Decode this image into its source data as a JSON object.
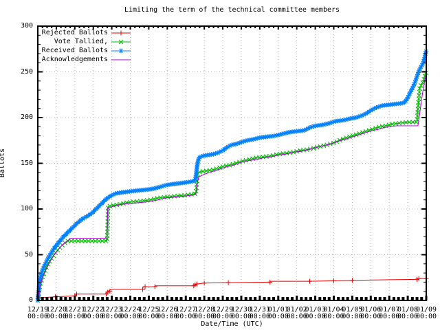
{
  "title": "Limiting the term of the technical committee members",
  "x_axis": {
    "label": "Date/Time (UTC)",
    "tick_time": "00:00",
    "tick_dates": [
      "12/19",
      "12/20",
      "12/21",
      "12/22",
      "12/23",
      "12/24",
      "12/25",
      "12/26",
      "12/27",
      "12/28",
      "12/29",
      "12/30",
      "12/31",
      "01/01",
      "01/02",
      "01/03",
      "01/04",
      "01/05",
      "01/06",
      "01/07",
      "01/08",
      "01/09"
    ]
  },
  "y_axis": {
    "label": "Ballots",
    "ticks": [
      0,
      50,
      100,
      150,
      200,
      250,
      300
    ]
  },
  "colors": {
    "rejected": "#e80000",
    "tallied": "#00b800",
    "received": "#0080ff",
    "acknowledgements": "#b000e0",
    "grid": "#b4b4b4",
    "border": "#000000"
  },
  "legend": [
    {
      "label": "Rejected Ballots",
      "series": "rejected",
      "marker": "plus"
    },
    {
      "label": "Vote Tallied,",
      "series": "tallied",
      "marker": "cross"
    },
    {
      "label": "Received Ballots",
      "series": "received",
      "marker": "asterisk"
    },
    {
      "label": "Acknowledgements",
      "series": "acknowledgements",
      "marker": "none"
    }
  ],
  "chart_data": {
    "type": "line",
    "title": "Limiting the term of the technical committee members",
    "xlabel": "Date/Time (UTC)",
    "ylabel": "Ballots",
    "ylim": [
      0,
      300
    ],
    "x_unit": "days since 12/19 00:00 UTC",
    "x_range_days": [
      0,
      21
    ],
    "grid": true,
    "legend_position": "top-left-inside",
    "series": [
      {
        "name": "Rejected Ballots",
        "series": "rejected",
        "marker": "plus",
        "marker_mode": "explicit",
        "points": [
          [
            0,
            0
          ],
          [
            0.1,
            3
          ],
          [
            0.95,
            4
          ],
          [
            2.0,
            5
          ],
          [
            2.1,
            7
          ],
          [
            3.65,
            7
          ],
          [
            3.72,
            9
          ],
          [
            3.8,
            10
          ],
          [
            3.95,
            12
          ],
          [
            5.65,
            12
          ],
          [
            5.7,
            15
          ],
          [
            6.3,
            15
          ],
          [
            6.35,
            16
          ],
          [
            8.4,
            16
          ],
          [
            8.45,
            17
          ],
          [
            8.6,
            18
          ],
          [
            9.0,
            19
          ],
          [
            10.3,
            19.5
          ],
          [
            12.5,
            20
          ],
          [
            12.6,
            21
          ],
          [
            14.7,
            21
          ],
          [
            16.0,
            21.5
          ],
          [
            17.0,
            22
          ],
          [
            18.5,
            22.5
          ],
          [
            20.4,
            23
          ],
          [
            20.55,
            24
          ],
          [
            21,
            24
          ]
        ],
        "marker_days": [
          0.1,
          0.95,
          2.0,
          2.1,
          3.7,
          3.78,
          3.9,
          5.67,
          5.8,
          6.33,
          8.43,
          8.5,
          8.6,
          9.0,
          10.3,
          12.55,
          14.7,
          16.0,
          17.0,
          20.5,
          20.6,
          21.0
        ]
      },
      {
        "name": "Vote Tallied,",
        "series": "tallied",
        "marker": "cross",
        "marker_mode": "path",
        "marker_spacing": 5,
        "points": [
          [
            0,
            0
          ],
          [
            0.05,
            8
          ],
          [
            0.12,
            16
          ],
          [
            0.25,
            25
          ],
          [
            0.4,
            33
          ],
          [
            0.55,
            40
          ],
          [
            0.75,
            46
          ],
          [
            0.95,
            52
          ],
          [
            1.15,
            57
          ],
          [
            1.35,
            61
          ],
          [
            1.55,
            64
          ],
          [
            1.65,
            65
          ],
          [
            3.74,
            65
          ],
          [
            3.78,
            85
          ],
          [
            3.8,
            103
          ],
          [
            4.1,
            104
          ],
          [
            4.4,
            105
          ],
          [
            4.8,
            107
          ],
          [
            5.2,
            108
          ],
          [
            5.7,
            109
          ],
          [
            6.1,
            110
          ],
          [
            6.5,
            112
          ],
          [
            6.9,
            113
          ],
          [
            7.4,
            114
          ],
          [
            7.9,
            115
          ],
          [
            8.3,
            116
          ],
          [
            8.55,
            117
          ],
          [
            8.6,
            128
          ],
          [
            8.65,
            140
          ],
          [
            8.9,
            141
          ],
          [
            9.2,
            142
          ],
          [
            9.5,
            143
          ],
          [
            9.8,
            145
          ],
          [
            10.1,
            147
          ],
          [
            10.4,
            148
          ],
          [
            10.7,
            150
          ],
          [
            11.0,
            152
          ],
          [
            11.4,
            154
          ],
          [
            11.8,
            156
          ],
          [
            12.2,
            157
          ],
          [
            12.6,
            158
          ],
          [
            13.0,
            160
          ],
          [
            13.4,
            161
          ],
          [
            13.8,
            162
          ],
          [
            14.2,
            164
          ],
          [
            14.6,
            165
          ],
          [
            15.0,
            167
          ],
          [
            15.4,
            169
          ],
          [
            15.8,
            171
          ],
          [
            16.1,
            173
          ],
          [
            16.4,
            176
          ],
          [
            16.7,
            178
          ],
          [
            17.0,
            180
          ],
          [
            17.3,
            182
          ],
          [
            17.6,
            184
          ],
          [
            17.9,
            186
          ],
          [
            18.2,
            188
          ],
          [
            18.5,
            190
          ],
          [
            18.8,
            191
          ],
          [
            19.2,
            193
          ],
          [
            19.6,
            194
          ],
          [
            20.0,
            195
          ],
          [
            20.5,
            195
          ],
          [
            20.55,
            210
          ],
          [
            20.6,
            222
          ],
          [
            20.65,
            233
          ],
          [
            20.75,
            236
          ],
          [
            20.85,
            240
          ],
          [
            20.92,
            245
          ],
          [
            21,
            250
          ]
        ]
      },
      {
        "name": "Received Ballots",
        "series": "received",
        "marker": "asterisk",
        "marker_mode": "path",
        "marker_spacing": 3,
        "points": [
          [
            0,
            0
          ],
          [
            0.04,
            10
          ],
          [
            0.08,
            18
          ],
          [
            0.15,
            26
          ],
          [
            0.25,
            33
          ],
          [
            0.4,
            40
          ],
          [
            0.55,
            46
          ],
          [
            0.75,
            53
          ],
          [
            0.95,
            59
          ],
          [
            1.15,
            64
          ],
          [
            1.4,
            70
          ],
          [
            1.65,
            75
          ],
          [
            1.9,
            80
          ],
          [
            2.15,
            85
          ],
          [
            2.4,
            89
          ],
          [
            2.65,
            92
          ],
          [
            2.9,
            95
          ],
          [
            3.1,
            99
          ],
          [
            3.3,
            103
          ],
          [
            3.5,
            107
          ],
          [
            3.7,
            111
          ],
          [
            3.85,
            113
          ],
          [
            4.0,
            115
          ],
          [
            4.2,
            117
          ],
          [
            4.5,
            118
          ],
          [
            4.9,
            119
          ],
          [
            5.3,
            120
          ],
          [
            5.8,
            121
          ],
          [
            6.2,
            122
          ],
          [
            6.6,
            124
          ],
          [
            6.9,
            126
          ],
          [
            7.2,
            127
          ],
          [
            7.6,
            128
          ],
          [
            8.0,
            129
          ],
          [
            8.3,
            130
          ],
          [
            8.5,
            131
          ],
          [
            8.56,
            138
          ],
          [
            8.62,
            148
          ],
          [
            8.7,
            156
          ],
          [
            8.9,
            158
          ],
          [
            9.2,
            159
          ],
          [
            9.5,
            160
          ],
          [
            9.8,
            162
          ],
          [
            10.0,
            164
          ],
          [
            10.2,
            167
          ],
          [
            10.45,
            170
          ],
          [
            10.7,
            171
          ],
          [
            11.0,
            173
          ],
          [
            11.3,
            175
          ],
          [
            11.6,
            176
          ],
          [
            12.0,
            178
          ],
          [
            12.4,
            179
          ],
          [
            12.8,
            180
          ],
          [
            13.2,
            182
          ],
          [
            13.6,
            184
          ],
          [
            14.0,
            185
          ],
          [
            14.4,
            186
          ],
          [
            14.7,
            189
          ],
          [
            15.0,
            191
          ],
          [
            15.4,
            192
          ],
          [
            15.8,
            194
          ],
          [
            16.1,
            196
          ],
          [
            16.5,
            197
          ],
          [
            16.9,
            199
          ],
          [
            17.2,
            200
          ],
          [
            17.5,
            202
          ],
          [
            17.8,
            205
          ],
          [
            18.1,
            209
          ],
          [
            18.3,
            211
          ],
          [
            18.6,
            213
          ],
          [
            19.0,
            214
          ],
          [
            19.4,
            215
          ],
          [
            19.8,
            216
          ],
          [
            19.95,
            220
          ],
          [
            20.1,
            226
          ],
          [
            20.25,
            232
          ],
          [
            20.4,
            239
          ],
          [
            20.5,
            245
          ],
          [
            20.6,
            251
          ],
          [
            20.7,
            255
          ],
          [
            20.8,
            258
          ],
          [
            20.87,
            262
          ],
          [
            20.93,
            267
          ],
          [
            21,
            274
          ]
        ]
      },
      {
        "name": "Acknowledgements",
        "series": "acknowledgements",
        "marker": "none",
        "marker_mode": "none",
        "points": [
          [
            0,
            0
          ],
          [
            0.1,
            14
          ],
          [
            0.25,
            25
          ],
          [
            0.45,
            34
          ],
          [
            0.65,
            42
          ],
          [
            0.85,
            49
          ],
          [
            1.05,
            54
          ],
          [
            1.25,
            59
          ],
          [
            1.45,
            63
          ],
          [
            1.65,
            66
          ],
          [
            1.75,
            68
          ],
          [
            3.74,
            68
          ],
          [
            3.78,
            101
          ],
          [
            4.1,
            103
          ],
          [
            4.5,
            105
          ],
          [
            5.0,
            106
          ],
          [
            5.5,
            107
          ],
          [
            6.0,
            108
          ],
          [
            6.5,
            110
          ],
          [
            6.9,
            112
          ],
          [
            7.4,
            113
          ],
          [
            7.9,
            114
          ],
          [
            8.3,
            115
          ],
          [
            8.55,
            116
          ],
          [
            8.62,
            128
          ],
          [
            8.7,
            135
          ],
          [
            9.0,
            138
          ],
          [
            9.3,
            140
          ],
          [
            9.6,
            142
          ],
          [
            9.9,
            144
          ],
          [
            10.2,
            146
          ],
          [
            10.6,
            148
          ],
          [
            11.0,
            151
          ],
          [
            11.4,
            153
          ],
          [
            11.8,
            154
          ],
          [
            12.2,
            156
          ],
          [
            12.6,
            157
          ],
          [
            13.0,
            159
          ],
          [
            13.4,
            160
          ],
          [
            13.8,
            162
          ],
          [
            14.2,
            163
          ],
          [
            14.6,
            165
          ],
          [
            15.0,
            167
          ],
          [
            15.4,
            169
          ],
          [
            15.8,
            171
          ],
          [
            16.2,
            174
          ],
          [
            16.6,
            176
          ],
          [
            16.9,
            178
          ],
          [
            17.2,
            180
          ],
          [
            17.5,
            182
          ],
          [
            17.8,
            184
          ],
          [
            18.1,
            186
          ],
          [
            18.4,
            187
          ],
          [
            18.7,
            189
          ],
          [
            19.0,
            190
          ],
          [
            19.4,
            191
          ],
          [
            20.55,
            191
          ],
          [
            20.65,
            205
          ],
          [
            20.75,
            220
          ],
          [
            20.85,
            233
          ],
          [
            20.93,
            241
          ],
          [
            21,
            248
          ]
        ]
      }
    ]
  }
}
